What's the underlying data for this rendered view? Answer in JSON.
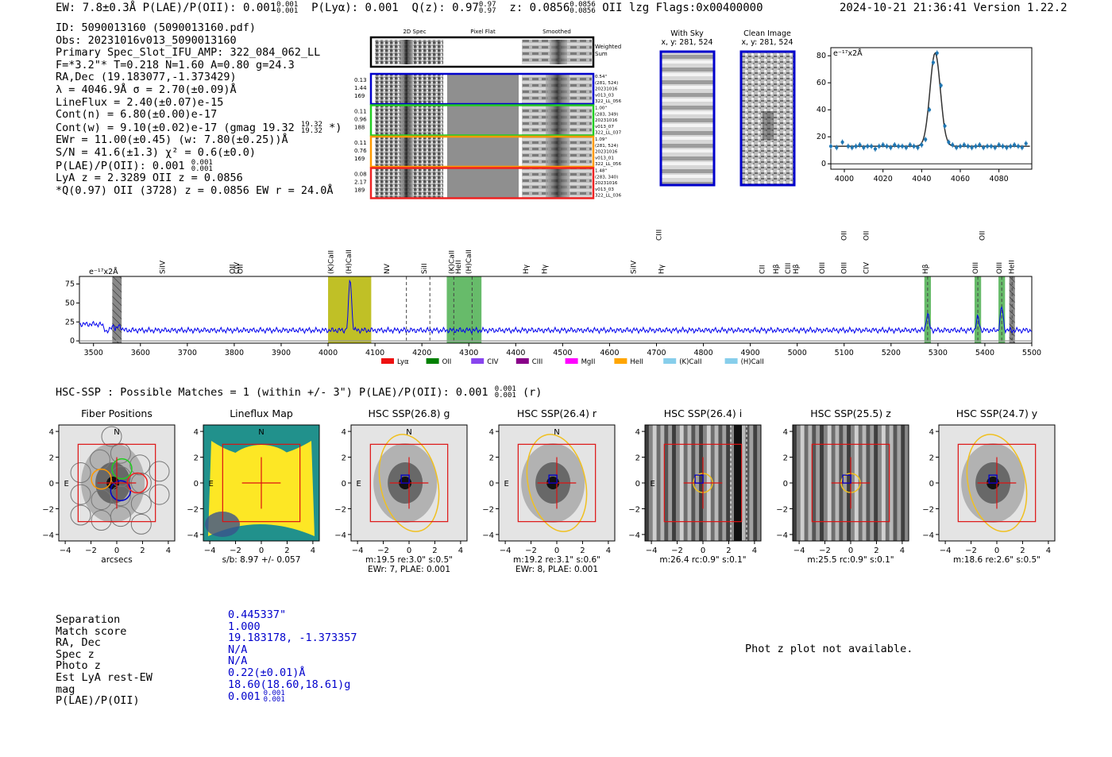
{
  "header": {
    "left": "EW: 7.8±0.3Å  P(LAE)/P(OII): 0.001",
    "plae_sub_hi": "0.001",
    "plae_sub_lo": "0.001",
    "plya": "P(Lyα): 0.001",
    "qz": "Q(z): 0.97",
    "qz_sub_hi": "0.97",
    "qz_sub_lo": "0.97",
    "z": "z: 0.0856",
    "z_sub_hi": "0.0856",
    "z_sub_lo": "0.0856",
    "z_tail": "OII   lzg  Flags:0x00400000",
    "timestamp": "2024-10-21 21:36:41  Version 1.22.2"
  },
  "info": {
    "l1": "ID: 5090013160 (5090013160.pdf)",
    "l2": "Obs: 20231016v013_5090013160",
    "l3": "Primary Spec_Slot_IFU_AMP: 322_084_062_LL",
    "l4": "F=*3.2\"*  T=0.218  N=1.60  A=0.80  g=24.3",
    "l5": "RA,Dec (19.183077,-1.373429)",
    "l6": "λ = 4046.9Å  σ = 2.70(±0.09)Å",
    "l7": "LineFlux = 2.40(±0.07)e-15",
    "l8": "Cont(n) = 6.80(±0.00)e-17",
    "l9": "Cont(w) = 9.10(±0.02)e-17 (gmag 19.32",
    "l9_sub_hi": "19.32",
    "l9_sub_lo": "19.32",
    "l9_tail": "*)",
    "l10": "EWr = 11.00(±0.45) (w: 7.80(±0.25))Å",
    "l11": "S/N = 41.6(±1.3)  χ² = 0.6(±0.0)",
    "l12": "P(LAE)/P(OII): 0.001",
    "l12_sub_hi": "0.001",
    "l12_sub_lo": "0.001",
    "l13": "LyA z = 2.3289  OII z = 0.0856",
    "l14": "*Q(0.97) OII (3728) z = 0.0856  EW r = 24.0Å"
  },
  "cutouts": {
    "col_titles": [
      "2D Spec",
      "Pixel Flat",
      "Smoothed"
    ],
    "weighted_sum": "Weighted Sum",
    "weighted_sum_l1": "Weighted",
    "weighted_sum_l2": "Sum",
    "rows": [
      {
        "left": [
          "0.13",
          "1.44",
          "169"
        ],
        "right": [
          "0.54\"",
          "(281, 524)",
          "20231016",
          "v013_03",
          "322_LL_056"
        ],
        "color": "#0000cc"
      },
      {
        "left": [
          "0.11",
          "0.96",
          "188"
        ],
        "right": [
          "1.00\"",
          "(283, 349)",
          "20231016",
          "v013_07",
          "322_LL_037"
        ],
        "color": "#22cc22"
      },
      {
        "left": [
          "0.11",
          "0.76",
          "169"
        ],
        "right": [
          "1.09\"",
          "(281, 524)",
          "20231016",
          "v013_01",
          "322_LL_056"
        ],
        "color": "#ff9900"
      },
      {
        "left": [
          "0.08",
          "2.17",
          "189"
        ],
        "right": [
          "1.48\"",
          "(283, 340)",
          "20231016",
          "v013_03",
          "322_LL_036"
        ],
        "color": "#ee2222"
      }
    ]
  },
  "sky": {
    "with_sky_title": "With Sky",
    "clean_title": "Clean Image",
    "coords": "x, y: 281, 524"
  },
  "line_fit": {
    "type": "scatter",
    "unit_label": "e⁻¹⁷x2Å",
    "xlim": [
      3993,
      4097
    ],
    "ylim": [
      -4,
      86
    ],
    "xticks": [
      "4000",
      "4020",
      "4040",
      "4060",
      "4080"
    ],
    "xtick_values": [
      4000,
      4020,
      4040,
      4060,
      4080
    ],
    "yticks": [
      "0",
      "20",
      "40",
      "60",
      "80"
    ],
    "ytick_values": [
      0,
      20,
      40,
      60,
      80
    ],
    "center": 4047,
    "sigma": 2.7,
    "continuum": 13,
    "amplitude": 69,
    "points_x": [
      3993,
      3996,
      3999,
      4002,
      4004,
      4006,
      4008,
      4010,
      4012,
      4014,
      4016,
      4018,
      4020,
      4022,
      4024,
      4026,
      4028,
      4030,
      4032,
      4034,
      4036,
      4038,
      4040,
      4042,
      4044,
      4046,
      4048,
      4050,
      4052,
      4054,
      4056,
      4058,
      4060,
      4062,
      4064,
      4066,
      4068,
      4070,
      4072,
      4074,
      4076,
      4078,
      4080,
      4082,
      4084,
      4086,
      4088,
      4090,
      4092,
      4094
    ],
    "points_y": [
      13,
      12,
      16,
      13,
      12,
      13,
      14,
      12,
      13,
      13,
      11,
      13,
      14,
      13,
      12,
      14,
      13,
      13,
      12,
      14,
      13,
      12,
      14,
      18,
      40,
      75,
      82,
      58,
      28,
      16,
      14,
      12,
      13,
      14,
      13,
      12,
      13,
      14,
      12,
      13,
      13,
      12,
      14,
      13,
      12,
      13,
      14,
      13,
      12,
      15
    ],
    "points_err": [
      2,
      2,
      2,
      2,
      2,
      2,
      2,
      2,
      2,
      2,
      2,
      2,
      2,
      2,
      2,
      2,
      2,
      2,
      2,
      2,
      2,
      2,
      2,
      2,
      2,
      2,
      2,
      2,
      2,
      2,
      2,
      2,
      2,
      2,
      2,
      2,
      2,
      2,
      2,
      2,
      2,
      2,
      2,
      2,
      2,
      2,
      2,
      2,
      2,
      2
    ]
  },
  "spectrum": {
    "type": "line",
    "unit_label": "e⁻¹⁷x2Å",
    "xlim": [
      3470,
      5500
    ],
    "ylim": [
      -3,
      85
    ],
    "xticks": [
      "3500",
      "3600",
      "3700",
      "3800",
      "3900",
      "4000",
      "4100",
      "4200",
      "4300",
      "4400",
      "4500",
      "4600",
      "4700",
      "4800",
      "4900",
      "5000",
      "5100",
      "5200",
      "5300",
      "5400",
      "5500"
    ],
    "xtick_values": [
      3500,
      3600,
      3700,
      3800,
      3900,
      4000,
      4100,
      4200,
      4300,
      4400,
      4500,
      4600,
      4700,
      4800,
      4900,
      5000,
      5100,
      5200,
      5300,
      5400,
      5500
    ],
    "yticks": [
      "0",
      "25",
      "50",
      "75"
    ],
    "ytick_values": [
      0,
      25,
      50,
      75
    ],
    "continuum": 14,
    "features": [
      {
        "w": 3530,
        "amp": -10,
        "s": 6
      },
      {
        "w": 3555,
        "amp": 6,
        "s": 4
      },
      {
        "w": 4047,
        "amp": 69,
        "s": 3
      },
      {
        "w": 5278,
        "amp": 22,
        "s": 3
      },
      {
        "w": 5385,
        "amp": 17,
        "s": 3
      },
      {
        "w": 5436,
        "amp": 31,
        "s": 3
      }
    ],
    "bands": [
      {
        "x0": 3540,
        "x1": 3560,
        "color": "#888888",
        "hatch": true
      },
      {
        "x0": 4000,
        "x1": 4092,
        "color": "#b5b500",
        "hatch": false
      },
      {
        "x0": 4253,
        "x1": 4327,
        "color": "#4caf50",
        "hatch": false
      },
      {
        "x0": 5271,
        "x1": 5285,
        "color": "#4caf50",
        "hatch": false
      },
      {
        "x0": 5378,
        "x1": 5392,
        "color": "#4caf50",
        "hatch": false
      },
      {
        "x0": 5429,
        "x1": 5443,
        "color": "#4caf50",
        "hatch": false
      },
      {
        "x0": 5452,
        "x1": 5464,
        "color": "#888888",
        "hatch": true
      }
    ],
    "dashed_lines": [
      4167,
      4217,
      4268,
      4307,
      5278,
      5385,
      5436,
      5458
    ],
    "labels": [
      {
        "w": 3652,
        "text": "SiIV",
        "color": "#9933cc",
        "row": 0
      },
      {
        "w": 3801,
        "text": "OII",
        "color": "#87ceeb",
        "row": 0
      },
      {
        "w": 3810,
        "text": "CIV",
        "color": "#ff9900",
        "row": 0
      },
      {
        "w": 3818,
        "text": "OII",
        "color": "#ff9900",
        "row": 0
      },
      {
        "w": 4011,
        "text": "(K)CaII",
        "color": "#87ceeb",
        "row": 0
      },
      {
        "w": 4049,
        "text": "(H)CaII",
        "color": "#87ceeb",
        "row": 0
      },
      {
        "w": 4130,
        "text": "NV",
        "color": "#cc0000",
        "row": 0
      },
      {
        "w": 4210,
        "text": "SiII",
        "color": "#cc0000",
        "row": 0
      },
      {
        "w": 4268,
        "text": "(K)CaII",
        "color": "#008000",
        "row": 0
      },
      {
        "w": 4283,
        "text": "HeII",
        "color": "#9933cc",
        "row": 0
      },
      {
        "w": 4305,
        "text": "(H)CaII",
        "color": "#008000",
        "row": 0
      },
      {
        "w": 4427,
        "text": "Hγ",
        "color": "#87ceeb",
        "row": 0
      },
      {
        "w": 4466,
        "text": "Hγ",
        "color": "#87ceeb",
        "row": 0
      },
      {
        "w": 4656,
        "text": "SiIV",
        "color": "#cc0000",
        "row": 0
      },
      {
        "w": 4710,
        "text": "CIII",
        "color": "#ff9900",
        "row": 1
      },
      {
        "w": 4715,
        "text": "Hγ",
        "color": "#008000",
        "row": 0
      },
      {
        "w": 4930,
        "text": "CII",
        "color": "#9933cc",
        "row": 0
      },
      {
        "w": 4960,
        "text": "Hβ",
        "color": "#87ceeb",
        "row": 0
      },
      {
        "w": 4985,
        "text": "CIII",
        "color": "#9933cc",
        "row": 0
      },
      {
        "w": 5002,
        "text": "Hβ",
        "color": "#87ceeb",
        "row": 0
      },
      {
        "w": 5058,
        "text": "OIII",
        "color": "#87ceeb",
        "row": 0
      },
      {
        "w": 5105,
        "text": "OIII",
        "color": "#87ceeb",
        "row": 0
      },
      {
        "w": 5105,
        "text": "OII",
        "color": "#87ceeb",
        "row": 1
      },
      {
        "w": 5152,
        "text": "OII",
        "color": "#87ceeb",
        "row": 1
      },
      {
        "w": 5152,
        "text": "CIV",
        "color": "#cc0000",
        "row": 0
      },
      {
        "w": 5278,
        "text": "Hβ",
        "color": "#008000",
        "row": 0
      },
      {
        "w": 5385,
        "text": "OIII",
        "color": "#008000",
        "row": 0
      },
      {
        "w": 5399,
        "text": "OII",
        "color": "#ff00ff",
        "row": 1
      },
      {
        "w": 5436,
        "text": "OIII",
        "color": "#008000",
        "row": 0
      },
      {
        "w": 5462,
        "text": "HeII",
        "color": "#cc0000",
        "row": 0
      }
    ]
  },
  "legend": [
    {
      "label": "Lyα",
      "color": "#ee1111"
    },
    {
      "label": "OII",
      "color": "#008000"
    },
    {
      "label": "CIV",
      "color": "#8844ee"
    },
    {
      "label": "CIII",
      "color": "#880088"
    },
    {
      "label": "MgII",
      "color": "#ff00ff"
    },
    {
      "label": "HeII",
      "color": "#ffa500"
    },
    {
      "label": "(K)CaII",
      "color": "#87ceeb"
    },
    {
      "label": "(H)CaII",
      "color": "#87ceeb"
    }
  ],
  "hsc": {
    "heading": "HSC-SSP : Possible Matches = 1 (within +/- 3\")  P(LAE)/P(OII): 0.001",
    "heading_sub_hi": "0.001",
    "heading_sub_lo": "0.001",
    "heading_tail": "(r)",
    "ticks": [
      "−4",
      "−2",
      "0",
      "2",
      "4"
    ],
    "tick_values": [
      -4,
      -2,
      0,
      2,
      4
    ],
    "panels": [
      {
        "title": "Fiber Positions",
        "caption1": "arcsecs",
        "caption2": "",
        "kind": "fibers",
        "N": "N",
        "E": "E"
      },
      {
        "title": "Lineflux Map",
        "caption1": "s/b: 8.97 +/- 0.057",
        "caption2": "",
        "kind": "lineflux",
        "N": "N",
        "E": "E"
      },
      {
        "title": "HSC SSP(26.8) g",
        "caption1": "m:19.5  re:3.0\"  s:0.5\"",
        "caption2": "EWr: 7, PLAE: 0.001",
        "kind": "galaxy",
        "N": "N",
        "E": "E"
      },
      {
        "title": "HSC SSP(26.4) r",
        "caption1": "m:19.2  re:3.1\"  s:0.6\"",
        "caption2": "EWr: 8, PLAE: 0.001",
        "kind": "galaxy",
        "N": "N",
        "E": "E"
      },
      {
        "title": "HSC SSP(26.4) i",
        "caption1": "m:26.4 rc:0.9\"  s:0.1\"",
        "caption2": "",
        "kind": "stripes",
        "N": "",
        "E": "E"
      },
      {
        "title": "HSC SSP(25.5) z",
        "caption1": "m:25.5 rc:0.9\"  s:0.1\"",
        "caption2": "",
        "kind": "stripes",
        "N": "",
        "E": ""
      },
      {
        "title": "HSC SSP(24.7) y",
        "caption1": "m:18.6  re:2.6\"  s:0.5\"",
        "caption2": "",
        "kind": "galaxy",
        "N": "",
        "E": ""
      }
    ]
  },
  "match_table": {
    "labels": [
      "Separation",
      "Match score",
      "RA, Dec",
      "Spec z",
      "Photo z",
      "Est LyA rest-EW",
      "mag",
      "P(LAE)/P(OII)"
    ],
    "values": [
      "0.445337\"",
      "1.000",
      "19.183178, -1.373357",
      "N/A",
      "N/A",
      "0.22(±0.01)Å",
      "18.60(18.60,18.61)g",
      "0.001"
    ],
    "plae_sub_hi": "0.001",
    "plae_sub_lo": "0.001"
  },
  "photz_note": "Phot z plot not available.",
  "colors": {
    "spectrum": "#0000ee",
    "fit": "#333333",
    "points": "#1f77b4",
    "frame_blue": "#0000cc",
    "ellipse": "#f0c020",
    "box": "#dd1111"
  }
}
